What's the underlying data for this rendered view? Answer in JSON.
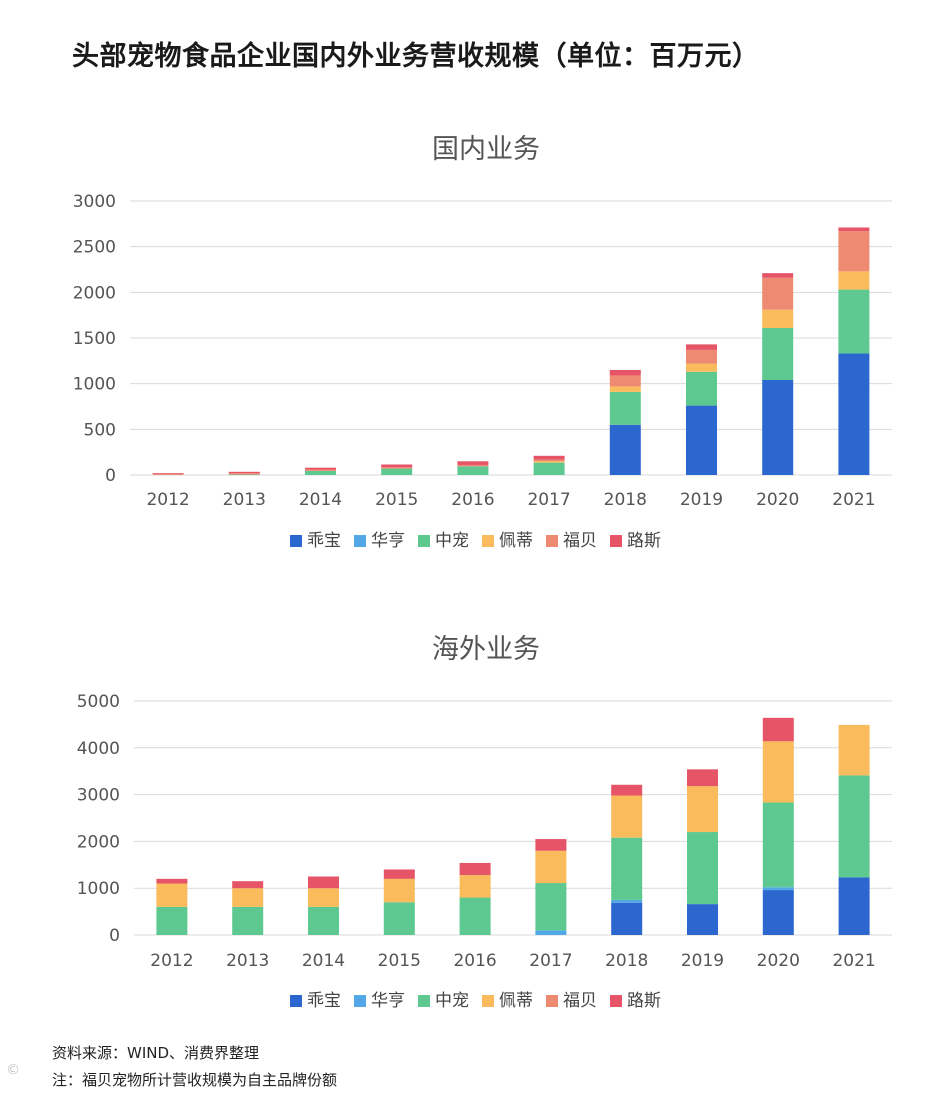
{
  "page": {
    "title": "头部宠物食品企业国内外业务营收规模（单位：百万元）",
    "source": "资料来源：WIND、消费界整理",
    "note": "注：福贝宠物所计营收规模为自主品牌份额",
    "watermark": "©"
  },
  "colors": {
    "乖宝": "#2b67cf",
    "华亨": "#52a8e6",
    "中宠": "#5dc990",
    "佩蒂": "#f9bb5c",
    "福贝": "#ef8a72",
    "路斯": "#e65468",
    "grid": "#d9d9d9",
    "axis_text": "#555555",
    "title_text": "#555555"
  },
  "chart_data": [
    {
      "id": "domestic",
      "type": "bar",
      "stacked": true,
      "title": "国内业务",
      "categories": [
        "2012",
        "2013",
        "2014",
        "2015",
        "2016",
        "2017",
        "2018",
        "2019",
        "2020",
        "2021"
      ],
      "ylim": [
        0,
        3000
      ],
      "yticks": [
        0,
        500,
        1000,
        1500,
        2000,
        2500,
        3000
      ],
      "legend_position": "bottom",
      "series": [
        {
          "name": "乖宝",
          "values": [
            0,
            0,
            0,
            0,
            0,
            0,
            550,
            760,
            1040,
            1330
          ]
        },
        {
          "name": "华亨",
          "values": [
            0,
            0,
            0,
            0,
            0,
            0,
            0,
            0,
            0,
            0
          ]
        },
        {
          "name": "中宠",
          "values": [
            0,
            5,
            45,
            70,
            95,
            135,
            360,
            370,
            570,
            700
          ]
        },
        {
          "name": "佩蒂",
          "values": [
            0,
            0,
            0,
            0,
            0,
            15,
            60,
            90,
            200,
            200
          ]
        },
        {
          "name": "福贝",
          "values": [
            10,
            15,
            15,
            15,
            15,
            20,
            120,
            150,
            350,
            440
          ]
        },
        {
          "name": "路斯",
          "values": [
            10,
            15,
            20,
            30,
            40,
            40,
            60,
            60,
            50,
            40
          ]
        }
      ]
    },
    {
      "id": "overseas",
      "type": "bar",
      "stacked": true,
      "title": "海外业务",
      "categories": [
        "2012",
        "2013",
        "2014",
        "2015",
        "2016",
        "2017",
        "2018",
        "2019",
        "2020",
        "2021"
      ],
      "ylim": [
        0,
        5000
      ],
      "yticks": [
        0,
        1000,
        2000,
        3000,
        4000,
        5000
      ],
      "legend_position": "bottom",
      "series": [
        {
          "name": "乖宝",
          "values": [
            0,
            0,
            0,
            0,
            0,
            0,
            690,
            660,
            960,
            1230
          ]
        },
        {
          "name": "华亨",
          "values": [
            0,
            0,
            0,
            0,
            0,
            100,
            60,
            0,
            60,
            0
          ]
        },
        {
          "name": "中宠",
          "values": [
            600,
            600,
            600,
            700,
            800,
            1010,
            1330,
            1540,
            1810,
            2180
          ]
        },
        {
          "name": "佩蒂",
          "values": [
            500,
            400,
            400,
            500,
            480,
            690,
            900,
            980,
            1310,
            1080
          ]
        },
        {
          "name": "福贝",
          "values": [
            0,
            0,
            0,
            0,
            0,
            0,
            0,
            0,
            0,
            0
          ]
        },
        {
          "name": "路斯",
          "values": [
            100,
            150,
            250,
            200,
            260,
            250,
            230,
            360,
            500,
            0
          ]
        }
      ]
    }
  ]
}
